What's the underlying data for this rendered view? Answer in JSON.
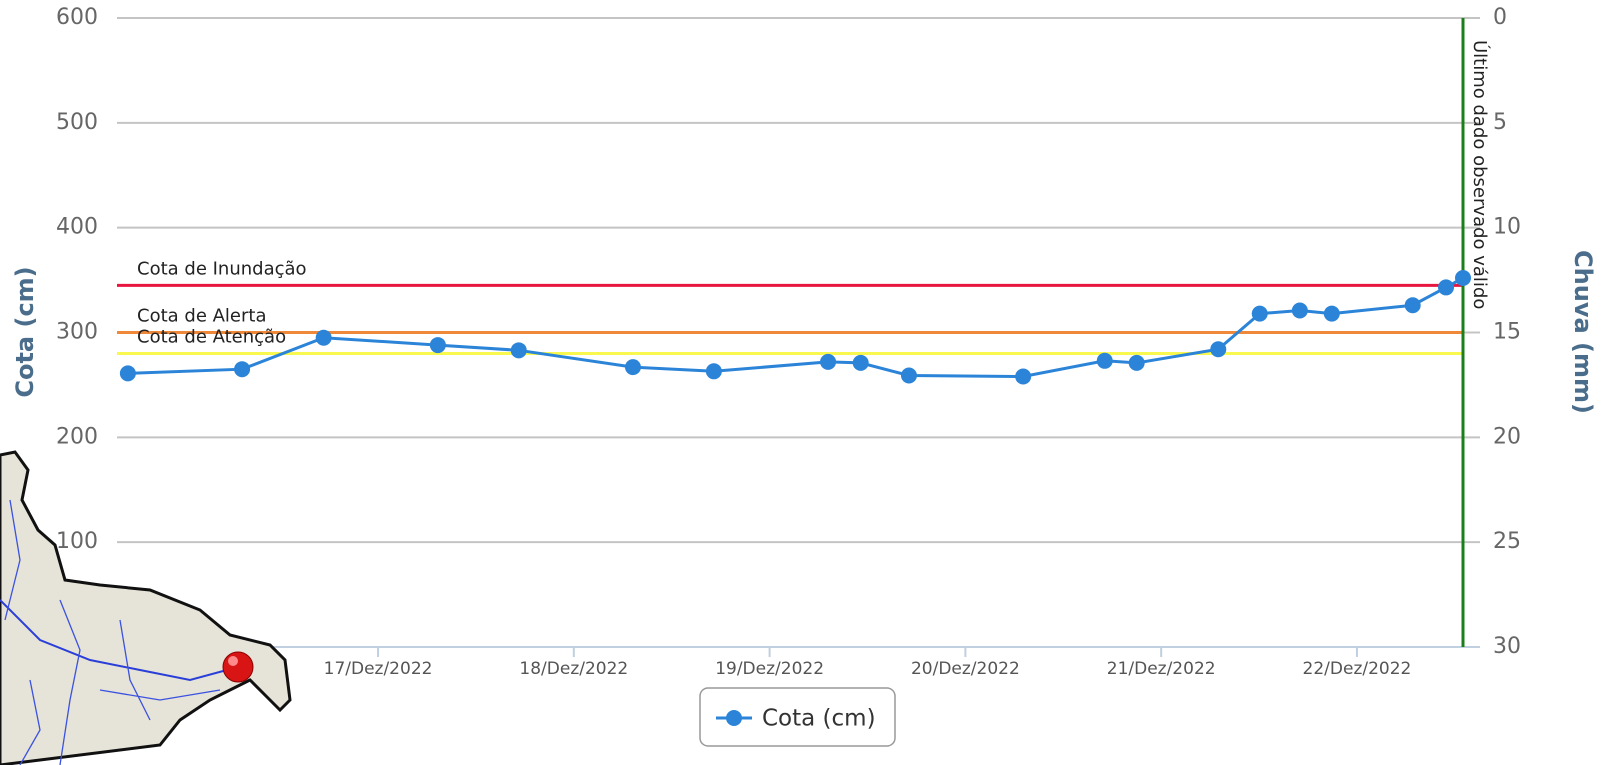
{
  "chart_data": {
    "type": "line",
    "x": [
      "2022-12-15T17:20",
      "2022-12-16T07:20",
      "2022-12-16T17:20",
      "2022-12-17T07:20",
      "2022-12-17T17:15",
      "2022-12-18T07:15",
      "2022-12-18T17:10",
      "2022-12-19T07:10",
      "2022-12-19T11:10",
      "2022-12-19T17:05",
      "2022-12-20T07:05",
      "2022-12-20T17:05",
      "2022-12-20T21:00",
      "2022-12-21T07:00",
      "2022-12-21T12:05",
      "2022-12-21T17:00",
      "2022-12-21T20:55",
      "2022-12-22T06:50",
      "2022-12-22T10:55",
      "2022-12-22T13:00"
    ],
    "series": [
      {
        "name": "Cota (cm)",
        "color": "#2b84d8",
        "values": [
          261,
          265,
          295,
          288,
          283,
          267,
          263,
          272,
          271,
          259,
          258,
          273,
          271,
          284,
          318,
          321,
          318,
          326,
          343,
          352
        ]
      }
    ],
    "xlim": [
      "2022-12-15T16:00",
      "2022-12-22T13:00"
    ],
    "xticks": [
      {
        "value": "2022-12-17T00:00",
        "label": "17/Dez/2022"
      },
      {
        "value": "2022-12-18T00:00",
        "label": "18/Dez/2022"
      },
      {
        "value": "2022-12-19T00:00",
        "label": "19/Dez/2022"
      },
      {
        "value": "2022-12-20T00:00",
        "label": "20/Dez/2022"
      },
      {
        "value": "2022-12-21T00:00",
        "label": "21/Dez/2022"
      },
      {
        "value": "2022-12-22T00:00",
        "label": "22/Dez/2022"
      }
    ],
    "ylim": [
      0,
      600
    ],
    "yticks": [
      100,
      200,
      300,
      400,
      500,
      600
    ],
    "y2lim": [
      30,
      0
    ],
    "y2ticks": [
      0,
      5,
      10,
      15,
      20,
      25,
      30
    ],
    "y_label": "Cota (cm)",
    "y2_label": "Chuva (mm)",
    "grid": true,
    "plot_lines": [
      {
        "label": "Cota de Inundação",
        "value": 345,
        "color": "#e8163f"
      },
      {
        "label": "Cota de Alerta",
        "value": 300,
        "color": "#f0883a"
      },
      {
        "label": "Cota de Atenção",
        "value": 280,
        "color": "#f8f84e"
      }
    ],
    "vline": {
      "x": "2022-12-22T13:00",
      "label": "Último dado observado válido",
      "color": "#1a7f1a"
    },
    "legend": "bottom"
  }
}
